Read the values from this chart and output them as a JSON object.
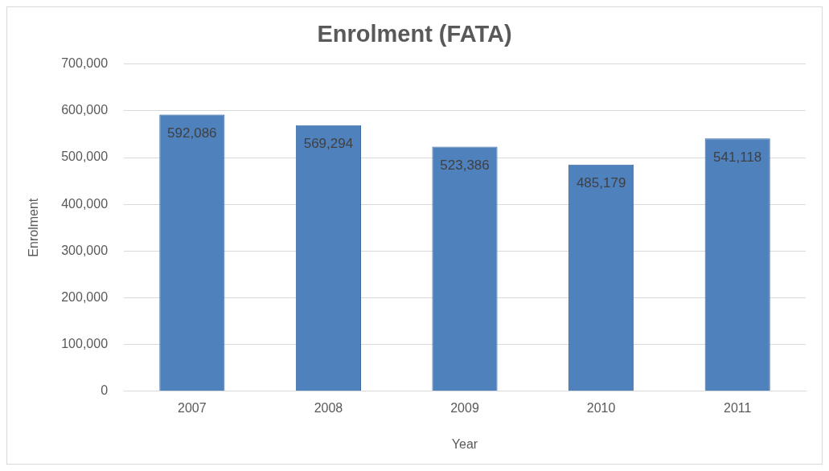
{
  "chart_data": {
    "type": "bar",
    "title": "Enrolment (FATA)",
    "xlabel": "Year",
    "ylabel": "Enrolment",
    "categories": [
      "2007",
      "2008",
      "2009",
      "2010",
      "2011"
    ],
    "values": [
      592086,
      569294,
      523386,
      485179,
      541118
    ],
    "color": "#4f81bd",
    "ylim": [
      0,
      700000
    ],
    "yticks": [
      {
        "value": 0,
        "label": "0"
      },
      {
        "value": 100000,
        "label": "100,000"
      },
      {
        "value": 200000,
        "label": "200,000"
      },
      {
        "value": 300000,
        "label": "300,000"
      },
      {
        "value": 400000,
        "label": "400,000"
      },
      {
        "value": 500000,
        "label": "500,000"
      },
      {
        "value": 600000,
        "label": "600,000"
      },
      {
        "value": 700000,
        "label": "700,000"
      }
    ],
    "value_labels": [
      "592,086",
      "569,294",
      "523,386",
      "485,179",
      "541,118"
    ],
    "grid": "y",
    "legend": false
  }
}
